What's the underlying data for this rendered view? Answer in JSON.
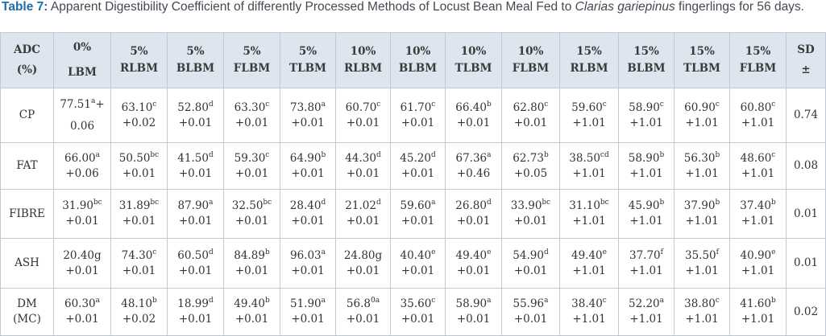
{
  "caption": {
    "label": "Table 7:",
    "text_before": "Apparent Digestibility Coefficient of differently Processed Methods of Locust Bean Meal Fed to",
    "species": "Clarias gariepinus",
    "text_after": "fingerlings for 56 days."
  },
  "table": {
    "headers": [
      {
        "line1": "ADC",
        "line2": "(%)"
      },
      {
        "line1": "0%",
        "line2": "LBM"
      },
      {
        "line1": "5%",
        "line2": "RLBM"
      },
      {
        "line1": "5%",
        "line2": "BLBM"
      },
      {
        "line1": "5%",
        "line2": "FLBM"
      },
      {
        "line1": "5%",
        "line2": "TLBM"
      },
      {
        "line1": "10%",
        "line2": "RLBM"
      },
      {
        "line1": "10%",
        "line2": "BLBM"
      },
      {
        "line1": "10%",
        "line2": "TLBM"
      },
      {
        "line1": "10%",
        "line2": "FLBM"
      },
      {
        "line1": "15%",
        "line2": "RLBM"
      },
      {
        "line1": "15%",
        "line2": "BLBM"
      },
      {
        "line1": "15%",
        "line2": "TLBM"
      },
      {
        "line1": "15%",
        "line2": "FLBM"
      },
      {
        "line1": "SD",
        "line2": "±"
      }
    ],
    "rows": [
      {
        "label": "CP",
        "cells": [
          {
            "v": "77.51",
            "sup": "a",
            "suffix": "+",
            "e": "0.06"
          },
          {
            "v": "63.10",
            "sup": "c",
            "suffix": "",
            "e": "+0.02"
          },
          {
            "v": "52.80",
            "sup": "d",
            "suffix": "",
            "e": "+0.01"
          },
          {
            "v": "63.30",
            "sup": "c",
            "suffix": "",
            "e": "+0.01"
          },
          {
            "v": "73.80",
            "sup": "a",
            "suffix": "",
            "e": "+0.01"
          },
          {
            "v": "60.70",
            "sup": "c",
            "suffix": "",
            "e": "+0.01"
          },
          {
            "v": "61.70",
            "sup": "c",
            "suffix": "",
            "e": "+0.01"
          },
          {
            "v": "66.40",
            "sup": "b",
            "suffix": "",
            "e": "+0.01"
          },
          {
            "v": "62.80",
            "sup": "c",
            "suffix": "",
            "e": "+0.01"
          },
          {
            "v": "59.60",
            "sup": "c",
            "suffix": "",
            "e": "+1.01"
          },
          {
            "v": "58.90",
            "sup": "c",
            "suffix": "",
            "e": "+1.01"
          },
          {
            "v": "60.90",
            "sup": "c",
            "suffix": "",
            "e": "+1.01"
          },
          {
            "v": "60.80",
            "sup": "c",
            "suffix": "",
            "e": "+1.01"
          }
        ],
        "sd": "0.74"
      },
      {
        "label": "FAT",
        "cells": [
          {
            "v": "66.00",
            "sup": "a",
            "suffix": "",
            "e": "+0.06"
          },
          {
            "v": "50.50",
            "sup": "bc",
            "suffix": "",
            "e": "+0.01"
          },
          {
            "v": "41.50",
            "sup": "d",
            "suffix": "",
            "e": "+0.01"
          },
          {
            "v": "59.30",
            "sup": "c",
            "suffix": "",
            "e": "+0.01"
          },
          {
            "v": "64.90",
            "sup": "b",
            "suffix": "",
            "e": "+0.01"
          },
          {
            "v": "44.30",
            "sup": "d",
            "suffix": "",
            "e": "+0.01"
          },
          {
            "v": "45.20",
            "sup": "d",
            "suffix": "",
            "e": "+0.01"
          },
          {
            "v": "67.36",
            "sup": "a",
            "suffix": "",
            "e": "+0.46"
          },
          {
            "v": "62.73",
            "sup": "b",
            "suffix": "",
            "e": "+0.05"
          },
          {
            "v": "38.50",
            "sup": "cd",
            "suffix": "",
            "e": "+1.01"
          },
          {
            "v": "58.90",
            "sup": "b",
            "suffix": "",
            "e": "+1.01"
          },
          {
            "v": "56.30",
            "sup": "b",
            "suffix": "",
            "e": "+1.01"
          },
          {
            "v": "48.60",
            "sup": "c",
            "suffix": "",
            "e": "+1.01"
          }
        ],
        "sd": "0.08"
      },
      {
        "label": "FIBRE",
        "cells": [
          {
            "v": "31.90",
            "sup": "bc",
            "suffix": "",
            "e": "+0.01"
          },
          {
            "v": "31.89",
            "sup": "bc",
            "suffix": "",
            "e": "+0.01"
          },
          {
            "v": "87.90",
            "sup": "a",
            "suffix": "",
            "e": "+0.01"
          },
          {
            "v": "32.50",
            "sup": "bc",
            "suffix": "",
            "e": "+0.01"
          },
          {
            "v": "28.40",
            "sup": "d",
            "suffix": "",
            "e": "+0.01"
          },
          {
            "v": "21.02",
            "sup": "d",
            "suffix": "",
            "e": "+0.01"
          },
          {
            "v": "59.60",
            "sup": "a",
            "suffix": "",
            "e": "+0.01"
          },
          {
            "v": "26.80",
            "sup": "d",
            "suffix": "",
            "e": "+0.01"
          },
          {
            "v": "33.90",
            "sup": "bc",
            "suffix": "",
            "e": "+0.01"
          },
          {
            "v": "31.10",
            "sup": "bc",
            "suffix": "",
            "e": "+1.01"
          },
          {
            "v": "45.90",
            "sup": "b",
            "suffix": "",
            "e": "+1.01"
          },
          {
            "v": "37.90",
            "sup": "b",
            "suffix": "",
            "e": "+1.01"
          },
          {
            "v": "37.40",
            "sup": "b",
            "suffix": "",
            "e": "+1.01"
          }
        ],
        "sd": "0.01"
      },
      {
        "label": "ASH",
        "cells": [
          {
            "v": "20.40g",
            "sup": "",
            "suffix": "",
            "e": "+0.01"
          },
          {
            "v": "74.30",
            "sup": "c",
            "suffix": "",
            "e": "+0.01"
          },
          {
            "v": "60.50",
            "sup": "d",
            "suffix": "",
            "e": "+0.01"
          },
          {
            "v": "84.89",
            "sup": "b",
            "suffix": "",
            "e": "+0.01"
          },
          {
            "v": "96.03",
            "sup": "a",
            "suffix": "",
            "e": "+0.01"
          },
          {
            "v": "24.80g",
            "sup": "",
            "suffix": "",
            "e": "+0.01"
          },
          {
            "v": "40.40",
            "sup": "e",
            "suffix": "",
            "e": "+0.01"
          },
          {
            "v": "49.40",
            "sup": "e",
            "suffix": "",
            "e": "+0.01"
          },
          {
            "v": "54.90",
            "sup": "d",
            "suffix": "",
            "e": "+0.01"
          },
          {
            "v": "49.40",
            "sup": "e",
            "suffix": "",
            "e": "+1.01"
          },
          {
            "v": "37.70",
            "sup": "f",
            "suffix": "",
            "e": "+1.01"
          },
          {
            "v": "35.50",
            "sup": "f",
            "suffix": "",
            "e": "+1.01"
          },
          {
            "v": "40.90",
            "sup": "e",
            "suffix": "",
            "e": "+1.01"
          }
        ],
        "sd": "0.01"
      },
      {
        "label": "DM\n(MC)",
        "cells": [
          {
            "v": "60.30",
            "sup": "a",
            "suffix": "",
            "e": "+0.01"
          },
          {
            "v": "48.10",
            "sup": "b",
            "suffix": "",
            "e": "+0.02"
          },
          {
            "v": "18.99",
            "sup": "d",
            "suffix": "",
            "e": "+0.01"
          },
          {
            "v": "49.40",
            "sup": "b",
            "suffix": "",
            "e": "+0.01"
          },
          {
            "v": "51.90",
            "sup": "a",
            "suffix": "",
            "e": "+0.01"
          },
          {
            "v": "56.8",
            "sup": "0a",
            "suffix": "",
            "e": "+0.01"
          },
          {
            "v": "35.60",
            "sup": "c",
            "suffix": "",
            "e": "+0.01"
          },
          {
            "v": "58.90",
            "sup": "a",
            "suffix": "",
            "e": "+0.01"
          },
          {
            "v": "55.96",
            "sup": "a",
            "suffix": "",
            "e": "+0.01"
          },
          {
            "v": "38.40",
            "sup": "c",
            "suffix": "",
            "e": "+1.01"
          },
          {
            "v": "52.20",
            "sup": "a",
            "suffix": "",
            "e": "+1.01"
          },
          {
            "v": "38.80",
            "sup": "c",
            "suffix": "",
            "e": "+1.01"
          },
          {
            "v": "41.60",
            "sup": "b",
            "suffix": "",
            "e": "+1.01"
          }
        ],
        "sd": "0.02"
      }
    ]
  },
  "colors": {
    "header_bg": "#dde6ef",
    "border": "#bfcad6",
    "caption_label": "#1f6fa8",
    "caption_text": "#444a52",
    "cell_text": "#333333"
  }
}
